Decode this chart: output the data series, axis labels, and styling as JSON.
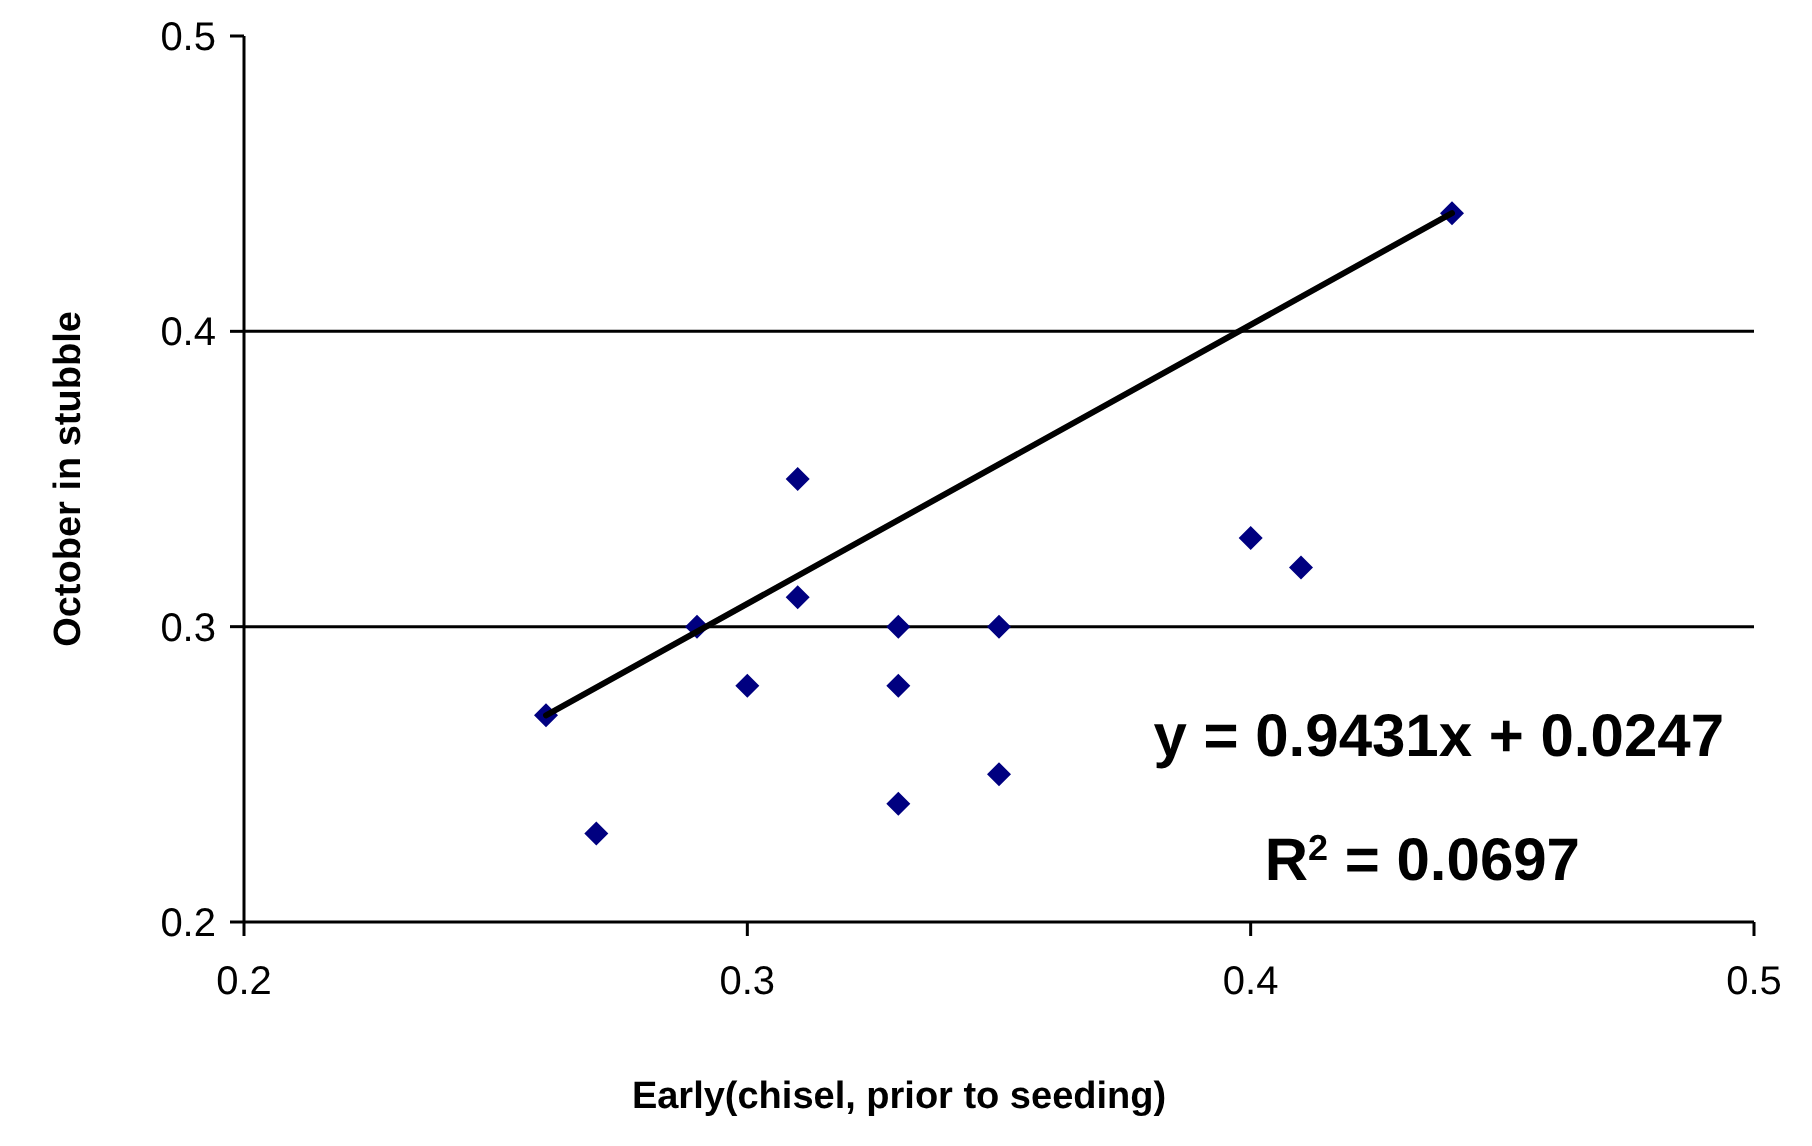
{
  "chart_data": {
    "type": "scatter",
    "xlabel": "Early(chisel, prior to seeding)",
    "ylabel": "October in stubble",
    "xlim": [
      0.2,
      0.5
    ],
    "ylim": [
      0.2,
      0.5
    ],
    "xticks": [
      0.2,
      0.3,
      0.4,
      0.5
    ],
    "yticks": [
      0.2,
      0.3,
      0.4,
      0.5
    ],
    "grid": "y",
    "marker": "diamond",
    "series": [
      {
        "color": "#000080",
        "x": [
          0.26,
          0.27,
          0.29,
          0.3,
          0.31,
          0.31,
          0.33,
          0.33,
          0.33,
          0.35,
          0.35,
          0.4,
          0.41,
          0.44
        ],
        "values": [
          0.27,
          0.23,
          0.3,
          0.28,
          0.35,
          0.31,
          0.3,
          0.28,
          0.24,
          0.3,
          0.25,
          0.33,
          0.32,
          0.44
        ]
      },
      {
        "type": "line",
        "color": "#000000",
        "marker": "none",
        "x": [
          0.26,
          0.44
        ],
        "values": [
          0.27,
          0.44
        ]
      }
    ],
    "annotations": [
      "y = 0.9431x + 0.0247",
      "R$^{2}$ = 0.0697"
    ]
  }
}
